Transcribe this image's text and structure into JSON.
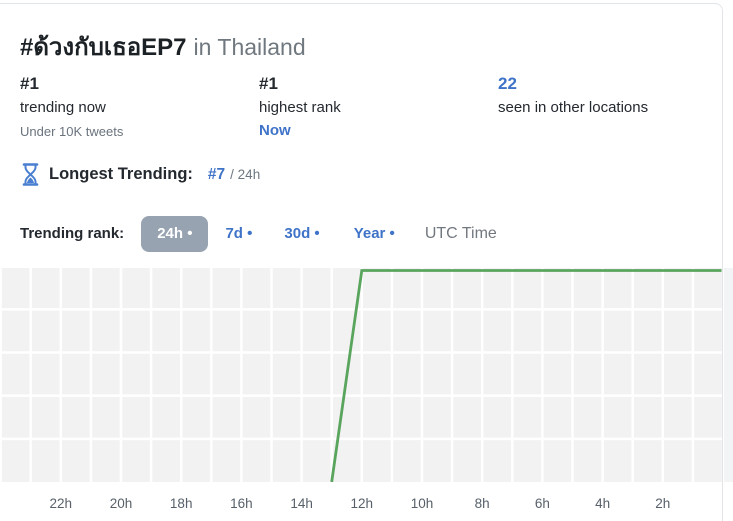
{
  "header": {
    "hashtag": "#ด้วงกับเธอEP7",
    "location": "in Thailand"
  },
  "stats": {
    "trending_now": {
      "value": "#1",
      "label": "trending now",
      "sub": "Under 10K tweets"
    },
    "highest_rank": {
      "value": "#1",
      "label": "highest rank",
      "sub": "Now"
    },
    "other_locations": {
      "value": "22",
      "label": "seen in other locations"
    }
  },
  "longest_trending": {
    "icon": "hourglass-icon",
    "label": "Longest Trending:",
    "value": "#7",
    "period": "/ 24h"
  },
  "rank_selector": {
    "label": "Trending rank:",
    "options": [
      {
        "label": "24h •",
        "active": true
      },
      {
        "label": "7d •",
        "active": false
      },
      {
        "label": "30d •",
        "active": false
      },
      {
        "label": "Year •",
        "active": false
      }
    ],
    "timezone_label": "UTC Time"
  },
  "colors": {
    "accent_blue": "#3e73c8",
    "line_green": "#5aa55e",
    "chip_bg": "#97a3b1",
    "chart_bg": "#f2f2f2",
    "grid_line": "#ffffff",
    "card_border": "#e1e4e8"
  },
  "chart_data": {
    "type": "line",
    "x_tick_labels": [
      "22h",
      "20h",
      "18h",
      "16h",
      "14h",
      "12h",
      "10h",
      "8h",
      "6h",
      "4h",
      "2h"
    ],
    "x_tick_hours_ago": [
      22,
      20,
      18,
      16,
      14,
      12,
      10,
      8,
      6,
      4,
      2
    ],
    "x_axis": {
      "unit": "hours ago",
      "min": 0,
      "max": 24,
      "direction": "right_edge_is_now"
    },
    "y_axis": {
      "unit": "trending rank",
      "top": 1,
      "bottom": 50,
      "inverted": true,
      "gridline_ranks": [
        10,
        20,
        30,
        40
      ]
    },
    "series": [
      {
        "name": "trending-rank",
        "color": "#5aa55e",
        "points": [
          {
            "hours_ago": 13,
            "rank": 50
          },
          {
            "hours_ago": 12,
            "rank": 1
          },
          {
            "hours_ago": 0,
            "rank": 1
          }
        ]
      }
    ],
    "grid": true,
    "legend": false
  }
}
